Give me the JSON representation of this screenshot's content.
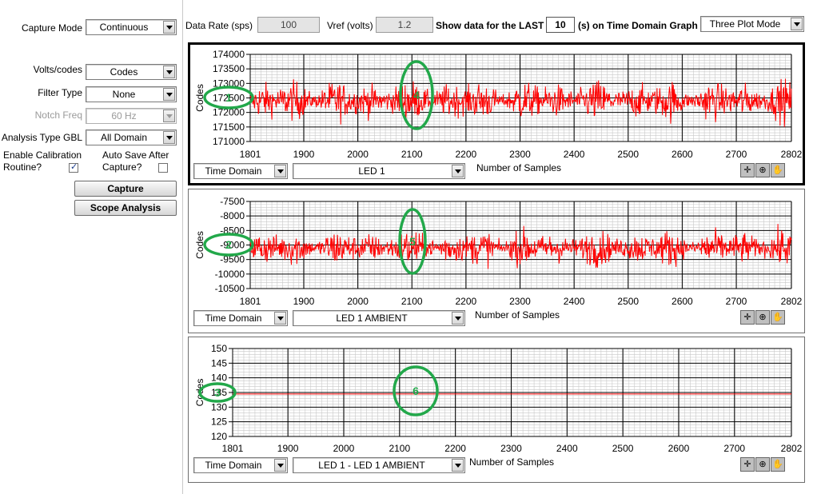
{
  "left_panel": {
    "capture_mode_label": "Capture Mode",
    "capture_mode_value": "Continuous",
    "volts_codes_label": "Volts/codes",
    "volts_codes_value": "Codes",
    "filter_type_label": "Filter Type",
    "filter_type_value": "None",
    "notch_freq_label": "Notch Freq",
    "notch_freq_value": "60 Hz",
    "analysis_type_label": "Analysis Type GBL",
    "analysis_type_value": "All Domain",
    "enable_cal_label_1": "Enable Calibration",
    "enable_cal_label_2": "Routine?",
    "enable_cal_checked": true,
    "auto_save_label_1": "Auto Save After",
    "auto_save_label_2": "Capture?",
    "auto_save_checked": false,
    "capture_button": "Capture",
    "scope_button": "Scope Analysis"
  },
  "top_bar": {
    "data_rate_label": "Data Rate (sps)",
    "data_rate_value": "100",
    "vref_label": "Vref (volts)",
    "vref_value": "1.2",
    "show_data_label": "Show data for the LAST",
    "seconds_value": "10",
    "seconds_label": "(s) on Time Domain Graph",
    "plot_mode_value": "Three Plot Mode"
  },
  "colors": {
    "trace": "#ff0000",
    "annotation": "#22a84a",
    "grid_major": "#000000",
    "grid_minor": "#c8c8c8"
  },
  "plots": [
    {
      "ylabel": "Codes",
      "xlabel": "Number of Samples",
      "domain_value": "Time Domain",
      "signal_value": "LED 1",
      "y_ticks": [
        "174000",
        "173500",
        "173000",
        "172500",
        "172000",
        "171500",
        "171000"
      ],
      "x_ticks": [
        "1801",
        "1900",
        "2000",
        "2100",
        "2200",
        "2300",
        "2400",
        "2500",
        "2600",
        "2700",
        "2802"
      ],
      "annotation_left": "1",
      "annotation_mid": "4"
    },
    {
      "ylabel": "Codes",
      "xlabel": "Number of Samples",
      "domain_value": "Time Domain",
      "signal_value": "LED 1 AMBIENT",
      "y_ticks": [
        "-7500",
        "-8000",
        "-8500",
        "-9000",
        "-9500",
        "-10000",
        "-10500"
      ],
      "x_ticks": [
        "1801",
        "1900",
        "2000",
        "2100",
        "2200",
        "2300",
        "2400",
        "2500",
        "2600",
        "2700",
        "2802"
      ],
      "annotation_left": "2",
      "annotation_mid": "5"
    },
    {
      "ylabel": "Codes",
      "xlabel": "Number of Samples",
      "domain_value": "Time Domain",
      "signal_value": "LED 1 - LED 1 AMBIENT",
      "y_ticks": [
        "150",
        "145",
        "140",
        "135",
        "130",
        "125",
        "120"
      ],
      "x_ticks": [
        "1801",
        "1900",
        "2000",
        "2100",
        "2200",
        "2300",
        "2400",
        "2500",
        "2600",
        "2700",
        "2802"
      ],
      "annotation_left": "3",
      "annotation_mid": "6"
    }
  ],
  "chart_data": [
    {
      "type": "line",
      "x_range": [
        1801,
        2802
      ],
      "ylim": [
        171000,
        174000
      ],
      "ylabel": "Codes",
      "xlabel": "Number of Samples",
      "series": [
        {
          "name": "LED 1",
          "baseline": 172400,
          "noise_amplitude": 600
        }
      ]
    },
    {
      "type": "line",
      "x_range": [
        1801,
        2802
      ],
      "ylim": [
        -10500,
        -7500
      ],
      "ylabel": "Codes",
      "xlabel": "Number of Samples",
      "series": [
        {
          "name": "LED 1 AMBIENT",
          "baseline": -9100,
          "noise_amplitude": 550
        }
      ]
    },
    {
      "type": "line",
      "x_range": [
        1801,
        2802
      ],
      "ylim": [
        120,
        150
      ],
      "ylabel": "Codes",
      "xlabel": "Number of Samples",
      "series": [
        {
          "name": "LED 1 - LED 1 AMBIENT",
          "baseline": 134.5,
          "noise_amplitude": 0
        }
      ]
    }
  ]
}
